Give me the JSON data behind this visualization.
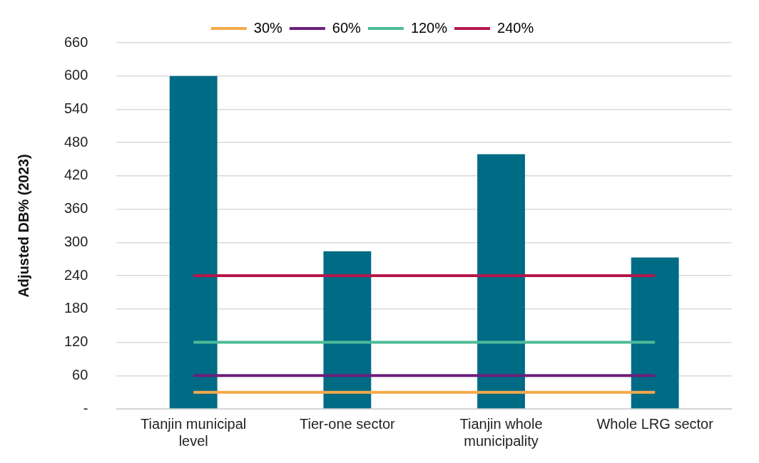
{
  "chart_data": {
    "type": "bar",
    "ylabel": "Adjusted DB% (2023)",
    "categories": [
      "Tianjin municipal level",
      "Tier-one sector",
      "Tianjin whole municipality",
      "Whole LRG sector"
    ],
    "series": [
      {
        "color": "#006b85",
        "values": [
          600,
          284,
          459,
          273
        ]
      },
      {
        "type": "line",
        "name": "30%",
        "color": "#f5a94a",
        "values": [
          30,
          30,
          30,
          30
        ]
      },
      {
        "type": "line",
        "name": "60%",
        "color": "#6b1f7a",
        "values": [
          60,
          60,
          60,
          60
        ]
      },
      {
        "type": "line",
        "name": "120%",
        "color": "#4dbb9a",
        "values": [
          120,
          120,
          120,
          120
        ]
      },
      {
        "type": "line",
        "name": "240%",
        "color": "#b5174b",
        "values": [
          240,
          240,
          240,
          240
        ]
      }
    ],
    "ylim": [
      0,
      660
    ],
    "yticks": [
      {
        "value": 0,
        "label": "-"
      },
      60,
      120,
      180,
      240,
      300,
      360,
      420,
      480,
      540,
      600,
      660
    ],
    "grid": "y",
    "legend": "top",
    "marker": "none"
  }
}
